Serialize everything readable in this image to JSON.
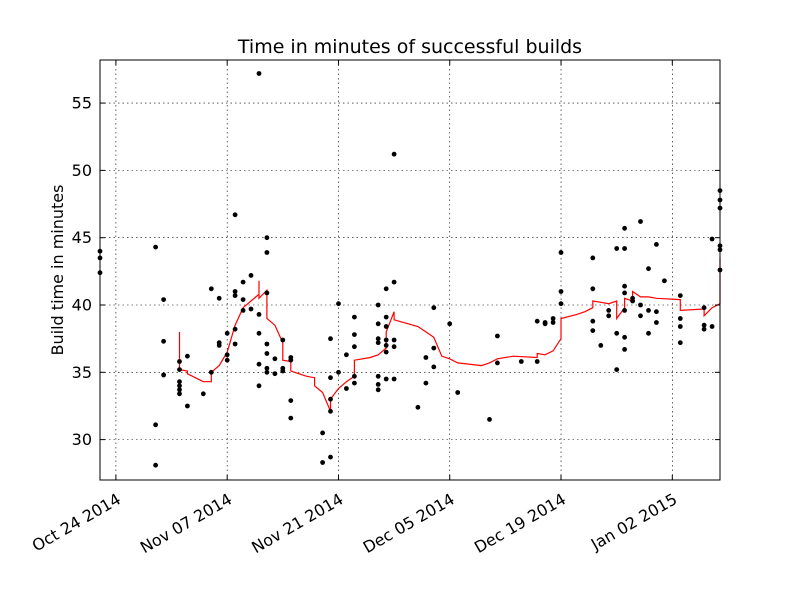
{
  "chart_data": {
    "type": "scatter",
    "title": "Time in minutes of successful builds",
    "xlabel": "",
    "ylabel": "Build time in minutes",
    "grid": true,
    "line_color": "#ff0000",
    "point_color": "#000000",
    "xlim": [
      "2014-10-22",
      "2015-01-08"
    ],
    "ylim": [
      27.0,
      58.2
    ],
    "x_ticks": [
      {
        "date": "2014-10-24",
        "label": "Oct 24 2014"
      },
      {
        "date": "2014-11-07",
        "label": "Nov 07 2014"
      },
      {
        "date": "2014-11-21",
        "label": "Nov 21 2014"
      },
      {
        "date": "2014-12-05",
        "label": "Dec 05 2014"
      },
      {
        "date": "2014-12-19",
        "label": "Dec 19 2014"
      },
      {
        "date": "2015-01-02",
        "label": "Jan 02 2015"
      }
    ],
    "y_ticks": [
      30,
      35,
      40,
      45,
      50,
      55
    ],
    "series": [
      {
        "type": "scatter",
        "points": [
          [
            "2014-10-22",
            44.0
          ],
          [
            "2014-10-22",
            43.5
          ],
          [
            "2014-10-22",
            42.4
          ],
          [
            "2014-10-29",
            44.3
          ],
          [
            "2014-10-29",
            31.1
          ],
          [
            "2014-10-29",
            28.1
          ],
          [
            "2014-10-30",
            40.4
          ],
          [
            "2014-10-30",
            37.3
          ],
          [
            "2014-10-30",
            34.8
          ],
          [
            "2014-11-01",
            35.8
          ],
          [
            "2014-11-01",
            35.2
          ],
          [
            "2014-11-01",
            34.3
          ],
          [
            "2014-11-01",
            34.0
          ],
          [
            "2014-11-01",
            33.7
          ],
          [
            "2014-11-01",
            33.4
          ],
          [
            "2014-11-02",
            36.2
          ],
          [
            "2014-11-02",
            32.5
          ],
          [
            "2014-11-04",
            33.4
          ],
          [
            "2014-11-05",
            41.2
          ],
          [
            "2014-11-05",
            35.0
          ],
          [
            "2014-11-06",
            40.5
          ],
          [
            "2014-11-06",
            37.2
          ],
          [
            "2014-11-06",
            37.0
          ],
          [
            "2014-11-07",
            37.9
          ],
          [
            "2014-11-07",
            36.3
          ],
          [
            "2014-11-07",
            35.9
          ],
          [
            "2014-11-08",
            46.7
          ],
          [
            "2014-11-08",
            41.0
          ],
          [
            "2014-11-08",
            40.7
          ],
          [
            "2014-11-08",
            38.2
          ],
          [
            "2014-11-08",
            37.1
          ],
          [
            "2014-11-09",
            41.7
          ],
          [
            "2014-11-09",
            40.4
          ],
          [
            "2014-11-09",
            39.6
          ],
          [
            "2014-11-10",
            42.2
          ],
          [
            "2014-11-10",
            39.7
          ],
          [
            "2014-11-11",
            57.2
          ],
          [
            "2014-11-11",
            39.3
          ],
          [
            "2014-11-11",
            37.9
          ],
          [
            "2014-11-11",
            35.6
          ],
          [
            "2014-11-11",
            34.0
          ],
          [
            "2014-11-12",
            45.0
          ],
          [
            "2014-11-12",
            43.9
          ],
          [
            "2014-11-12",
            40.9
          ],
          [
            "2014-11-12",
            37.1
          ],
          [
            "2014-11-12",
            36.4
          ],
          [
            "2014-11-12",
            35.3
          ],
          [
            "2014-11-12",
            35.0
          ],
          [
            "2014-11-13",
            36.0
          ],
          [
            "2014-11-13",
            34.9
          ],
          [
            "2014-11-14",
            37.4
          ],
          [
            "2014-11-14",
            35.3
          ],
          [
            "2014-11-14",
            35.1
          ],
          [
            "2014-11-15",
            36.1
          ],
          [
            "2014-11-15",
            35.9
          ],
          [
            "2014-11-15",
            32.9
          ],
          [
            "2014-11-15",
            31.6
          ],
          [
            "2014-11-19",
            30.5
          ],
          [
            "2014-11-19",
            28.3
          ],
          [
            "2014-11-20",
            37.5
          ],
          [
            "2014-11-20",
            34.6
          ],
          [
            "2014-11-20",
            33.0
          ],
          [
            "2014-11-20",
            32.1
          ],
          [
            "2014-11-20",
            28.7
          ],
          [
            "2014-11-21",
            40.1
          ],
          [
            "2014-11-21",
            35.0
          ],
          [
            "2014-11-22",
            36.3
          ],
          [
            "2014-11-22",
            33.8
          ],
          [
            "2014-11-23",
            39.1
          ],
          [
            "2014-11-23",
            37.8
          ],
          [
            "2014-11-23",
            36.9
          ],
          [
            "2014-11-23",
            34.7
          ],
          [
            "2014-11-23",
            34.2
          ],
          [
            "2014-11-26",
            40.0
          ],
          [
            "2014-11-26",
            38.6
          ],
          [
            "2014-11-26",
            37.5
          ],
          [
            "2014-11-26",
            37.2
          ],
          [
            "2014-11-26",
            34.7
          ],
          [
            "2014-11-26",
            34.1
          ],
          [
            "2014-11-26",
            33.7
          ],
          [
            "2014-11-27",
            41.2
          ],
          [
            "2014-11-27",
            39.1
          ],
          [
            "2014-11-27",
            38.4
          ],
          [
            "2014-11-27",
            37.4
          ],
          [
            "2014-11-27",
            37.0
          ],
          [
            "2014-11-27",
            36.5
          ],
          [
            "2014-11-27",
            34.5
          ],
          [
            "2014-11-28",
            51.2
          ],
          [
            "2014-11-28",
            41.7
          ],
          [
            "2014-11-28",
            37.4
          ],
          [
            "2014-11-28",
            36.9
          ],
          [
            "2014-11-28",
            34.5
          ],
          [
            "2014-12-01",
            32.4
          ],
          [
            "2014-12-02",
            36.1
          ],
          [
            "2014-12-02",
            34.2
          ],
          [
            "2014-12-03",
            39.8
          ],
          [
            "2014-12-03",
            36.8
          ],
          [
            "2014-12-03",
            35.4
          ],
          [
            "2014-12-05",
            38.6
          ],
          [
            "2014-12-06",
            33.5
          ],
          [
            "2014-12-10",
            31.5
          ],
          [
            "2014-12-11",
            37.7
          ],
          [
            "2014-12-11",
            35.7
          ],
          [
            "2014-12-14",
            35.8
          ],
          [
            "2014-12-16",
            38.8
          ],
          [
            "2014-12-16",
            35.8
          ],
          [
            "2014-12-17",
            38.7
          ],
          [
            "2014-12-17",
            38.6
          ],
          [
            "2014-12-18",
            39.0
          ],
          [
            "2014-12-18",
            38.7
          ],
          [
            "2014-12-19",
            43.9
          ],
          [
            "2014-12-19",
            41.0
          ],
          [
            "2014-12-19",
            40.1
          ],
          [
            "2014-12-23",
            43.5
          ],
          [
            "2014-12-23",
            41.2
          ],
          [
            "2014-12-23",
            38.8
          ],
          [
            "2014-12-23",
            38.1
          ],
          [
            "2014-12-24",
            37.0
          ],
          [
            "2014-12-25",
            39.6
          ],
          [
            "2014-12-25",
            39.2
          ],
          [
            "2014-12-26",
            44.2
          ],
          [
            "2014-12-26",
            37.9
          ],
          [
            "2014-12-26",
            35.2
          ],
          [
            "2014-12-27",
            45.7
          ],
          [
            "2014-12-27",
            44.2
          ],
          [
            "2014-12-27",
            41.4
          ],
          [
            "2014-12-27",
            40.9
          ],
          [
            "2014-12-27",
            39.6
          ],
          [
            "2014-12-27",
            37.6
          ],
          [
            "2014-12-27",
            36.7
          ],
          [
            "2014-12-28",
            40.5
          ],
          [
            "2014-12-28",
            40.3
          ],
          [
            "2014-12-29",
            46.2
          ],
          [
            "2014-12-29",
            40.0
          ],
          [
            "2014-12-29",
            39.2
          ],
          [
            "2014-12-30",
            42.7
          ],
          [
            "2014-12-30",
            39.6
          ],
          [
            "2014-12-30",
            37.9
          ],
          [
            "2014-12-31",
            44.5
          ],
          [
            "2014-12-31",
            39.5
          ],
          [
            "2014-12-31",
            38.7
          ],
          [
            "2015-01-01",
            41.8
          ],
          [
            "2015-01-03",
            40.7
          ],
          [
            "2015-01-03",
            39.0
          ],
          [
            "2015-01-03",
            38.4
          ],
          [
            "2015-01-03",
            37.2
          ],
          [
            "2015-01-06",
            39.8
          ],
          [
            "2015-01-06",
            38.5
          ],
          [
            "2015-01-06",
            38.2
          ],
          [
            "2015-01-07",
            44.9
          ],
          [
            "2015-01-07",
            38.4
          ],
          [
            "2015-01-08",
            48.5
          ],
          [
            "2015-01-08",
            47.8
          ],
          [
            "2015-01-08",
            47.2
          ],
          [
            "2015-01-08",
            44.4
          ],
          [
            "2015-01-08",
            44.1
          ],
          [
            "2015-01-08",
            42.6
          ]
        ]
      },
      {
        "type": "line",
        "points": [
          [
            "2014-11-01",
            38.0
          ],
          [
            "2014-11-01",
            35.2
          ],
          [
            "2014-11-02",
            35.1
          ],
          [
            "2014-11-02",
            34.9
          ],
          [
            "2014-11-04",
            34.3
          ],
          [
            "2014-11-05",
            34.3
          ],
          [
            "2014-11-05",
            35.0
          ],
          [
            "2014-11-06",
            35.5
          ],
          [
            "2014-11-07",
            36.5
          ],
          [
            "2014-11-08",
            38.5
          ],
          [
            "2014-11-09",
            39.8
          ],
          [
            "2014-11-10",
            40.3
          ],
          [
            "2014-11-11",
            40.8
          ],
          [
            "2014-11-11",
            41.8
          ],
          [
            "2014-11-11",
            40.5
          ],
          [
            "2014-11-12",
            41.1
          ],
          [
            "2014-11-12",
            39.0
          ],
          [
            "2014-11-13",
            38.5
          ],
          [
            "2014-11-14",
            37.2
          ],
          [
            "2014-11-14",
            35.9
          ],
          [
            "2014-11-15",
            35.8
          ],
          [
            "2014-11-15",
            35.1
          ],
          [
            "2014-11-16",
            34.9
          ],
          [
            "2014-11-17",
            34.7
          ],
          [
            "2014-11-18",
            34.6
          ],
          [
            "2014-11-18",
            34.0
          ],
          [
            "2014-11-19",
            33.5
          ],
          [
            "2014-11-20",
            32.1
          ],
          [
            "2014-11-20",
            33.0
          ],
          [
            "2014-11-21",
            33.8
          ],
          [
            "2014-11-22",
            34.3
          ],
          [
            "2014-11-23",
            34.7
          ],
          [
            "2014-11-23",
            35.9
          ],
          [
            "2014-11-25",
            36.1
          ],
          [
            "2014-11-26",
            36.3
          ],
          [
            "2014-11-27",
            36.8
          ],
          [
            "2014-11-27",
            38.0
          ],
          [
            "2014-11-28",
            39.5
          ],
          [
            "2014-11-28",
            38.9
          ],
          [
            "2014-12-01",
            38.4
          ],
          [
            "2014-12-02",
            38.0
          ],
          [
            "2014-12-03",
            37.6
          ],
          [
            "2014-12-04",
            36.2
          ],
          [
            "2014-12-05",
            36.0
          ],
          [
            "2014-12-06",
            35.7
          ],
          [
            "2014-12-09",
            35.5
          ],
          [
            "2014-12-10",
            35.7
          ],
          [
            "2014-12-11",
            36.0
          ],
          [
            "2014-12-13",
            36.2
          ],
          [
            "2014-12-16",
            36.1
          ],
          [
            "2014-12-16",
            36.4
          ],
          [
            "2014-12-17",
            36.3
          ],
          [
            "2014-12-18",
            36.6
          ],
          [
            "2014-12-19",
            37.5
          ],
          [
            "2014-12-19",
            39.0
          ],
          [
            "2014-12-21",
            39.3
          ],
          [
            "2014-12-22",
            39.5
          ],
          [
            "2014-12-23",
            39.8
          ],
          [
            "2014-12-23",
            40.3
          ],
          [
            "2014-12-24",
            40.2
          ],
          [
            "2014-12-25",
            40.1
          ],
          [
            "2014-12-26",
            40.3
          ],
          [
            "2014-12-26",
            39.5
          ],
          [
            "2014-12-26",
            39.0
          ],
          [
            "2014-12-27",
            39.8
          ],
          [
            "2014-12-27",
            40.5
          ],
          [
            "2014-12-28",
            40.3
          ],
          [
            "2014-12-28",
            41.0
          ],
          [
            "2014-12-29",
            40.6
          ],
          [
            "2014-12-30",
            40.6
          ],
          [
            "2014-12-31",
            40.5
          ],
          [
            "2015-01-03",
            40.4
          ],
          [
            "2015-01-03",
            39.6
          ],
          [
            "2015-01-06",
            39.7
          ],
          [
            "2015-01-06",
            39.2
          ],
          [
            "2015-01-07",
            39.8
          ],
          [
            "2015-01-08",
            40.1
          ],
          [
            "2015-01-08",
            43.5
          ]
        ]
      }
    ]
  }
}
